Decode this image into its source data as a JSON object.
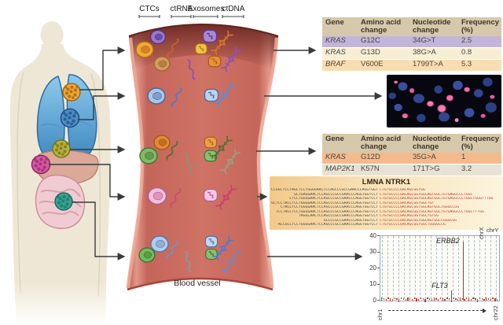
{
  "labels": {
    "ctcs": "CTCs",
    "ctrna": "ctRNA",
    "exosomes": "Exosomes",
    "ctdna": "ctDNA",
    "blood_vessel": "Blood vessel"
  },
  "table1": {
    "headers": [
      "Gene",
      "Amino acid\nchange",
      "Nucleotide\nchange",
      "Frequency\n(%)"
    ],
    "rows": [
      [
        "KRAS",
        "G12C",
        "34G>T",
        "2.5"
      ],
      [
        "KRAS",
        "G13D",
        "38G>A",
        "0.8"
      ],
      [
        "BRAF",
        "V600E",
        "1799T>A",
        "5.3"
      ]
    ],
    "row_colors": [
      "#c3b5d8",
      "#f8eed6",
      "#f9ddb2"
    ],
    "header_color": "#d6c9ab"
  },
  "table2": {
    "headers": [
      "Gene",
      "Amino acid\nchange",
      "Nucleotide\nchange",
      "Frequency\n(%)"
    ],
    "rows": [
      [
        "KRAS",
        "G12D",
        "35G>A",
        "1"
      ],
      [
        "MAP2K1",
        "K57N",
        "171T>G",
        "3.2"
      ]
    ],
    "row_colors": [
      "#f5ba8c",
      "#e7e3d4"
    ],
    "header_color": "#d6c9ab"
  },
  "fusion_panel": {
    "title": "LMNA NTRK1",
    "sequences": [
      {
        "left": "CCGGCTCCTAGCTCCTGGGGAACTCCAGCCCGCCGAACCCAGGTGGTCCT",
        "right": "CTGTGCCCCGACAGCGGTGG"
      },
      {
        "left": "GCTGAGGAACTCCAGCCCGCCGAACCCAGGTGGTCCT",
        "right": "CTGTGCCCCGACAGCGGTGGCAGTGGCTGTGAGGCCCTGGC"
      },
      {
        "left": "CTCCTGGGGAACTCCAGCCCGCCGAACCCAGGTGGTCCT",
        "right": "CTGTGCCCCGACAGCGGTGGCAGTGGCTGTGAGGCCCTGGCTGGGTTTGG"
      },
      {
        "left": "GCTCCTACCTCCTGGGGAACTCCAGCCCGCCGAACCCAGGTGGTCCT",
        "right": "CTGTGCCCCGACAGCGGTGGCTGT"
      },
      {
        "left": "CTACCTCCTGGGGAACTCCAGCCCGCCGAACCCAGGTGGTCCT",
        "right": "CTGTGCCCCGACAGCGGTGGCAGTGGCTGGGCCGG"
      },
      {
        "left": "TCCTACCTCCTGGGGAACTCCAGCCCGCCGAACCCAGGTGGTCCT",
        "right": "CTGTGCCCCGACAGCGGTGGCAGTGGCTGTGAGGCCCTGGCTTTGG"
      },
      {
        "left": "TAGGCAACTCCAGCCCGCCGAACCCAGGTGGTCCT",
        "right": "CTGTGCCCCGACAGCGGTGGCTGTGG"
      },
      {
        "left": "GCCCCGCCGAACCCAGGTGGTCCT",
        "right": "CTGTGCCCCGACAGCGGTGGCAGTGGCCGGGCGG"
      },
      {
        "left": "ACCGCCTCCTGGGGAACTCCAGCCCGCCGAACCCAGGTGGTCCT",
        "right": "CTGTGCCCCGACAGCGGTGGCTGGGGCCG"
      }
    ]
  },
  "chart_data": {
    "type": "scatter",
    "title": "",
    "xlabel": "",
    "ylabel": "",
    "ylim": [
      0,
      40
    ],
    "yticks": [
      0,
      10,
      20,
      30,
      40
    ],
    "n_gridlines": 22,
    "grid": "dashed-vertical",
    "baseline_value": 0.5,
    "point_color": "#c0392b",
    "x_axis": {
      "start_label": "chr1",
      "end_label": "chr22",
      "top_rotated_label": "chrX",
      "top_right_label": "chrY",
      "arrow_style": "dashed"
    },
    "peaks": [
      {
        "gene": "FLT3",
        "x_frac": 0.6,
        "value": 6
      },
      {
        "gene": "ERBB2",
        "x_frac": 0.7,
        "value": 36
      }
    ]
  },
  "colors": {
    "vessel_body": "#c96a5e",
    "vessel_rim": "#eba795",
    "vessel_top_shade": "#702c26",
    "arrow": "#3a3a3a",
    "peak_color": "#b93226"
  }
}
